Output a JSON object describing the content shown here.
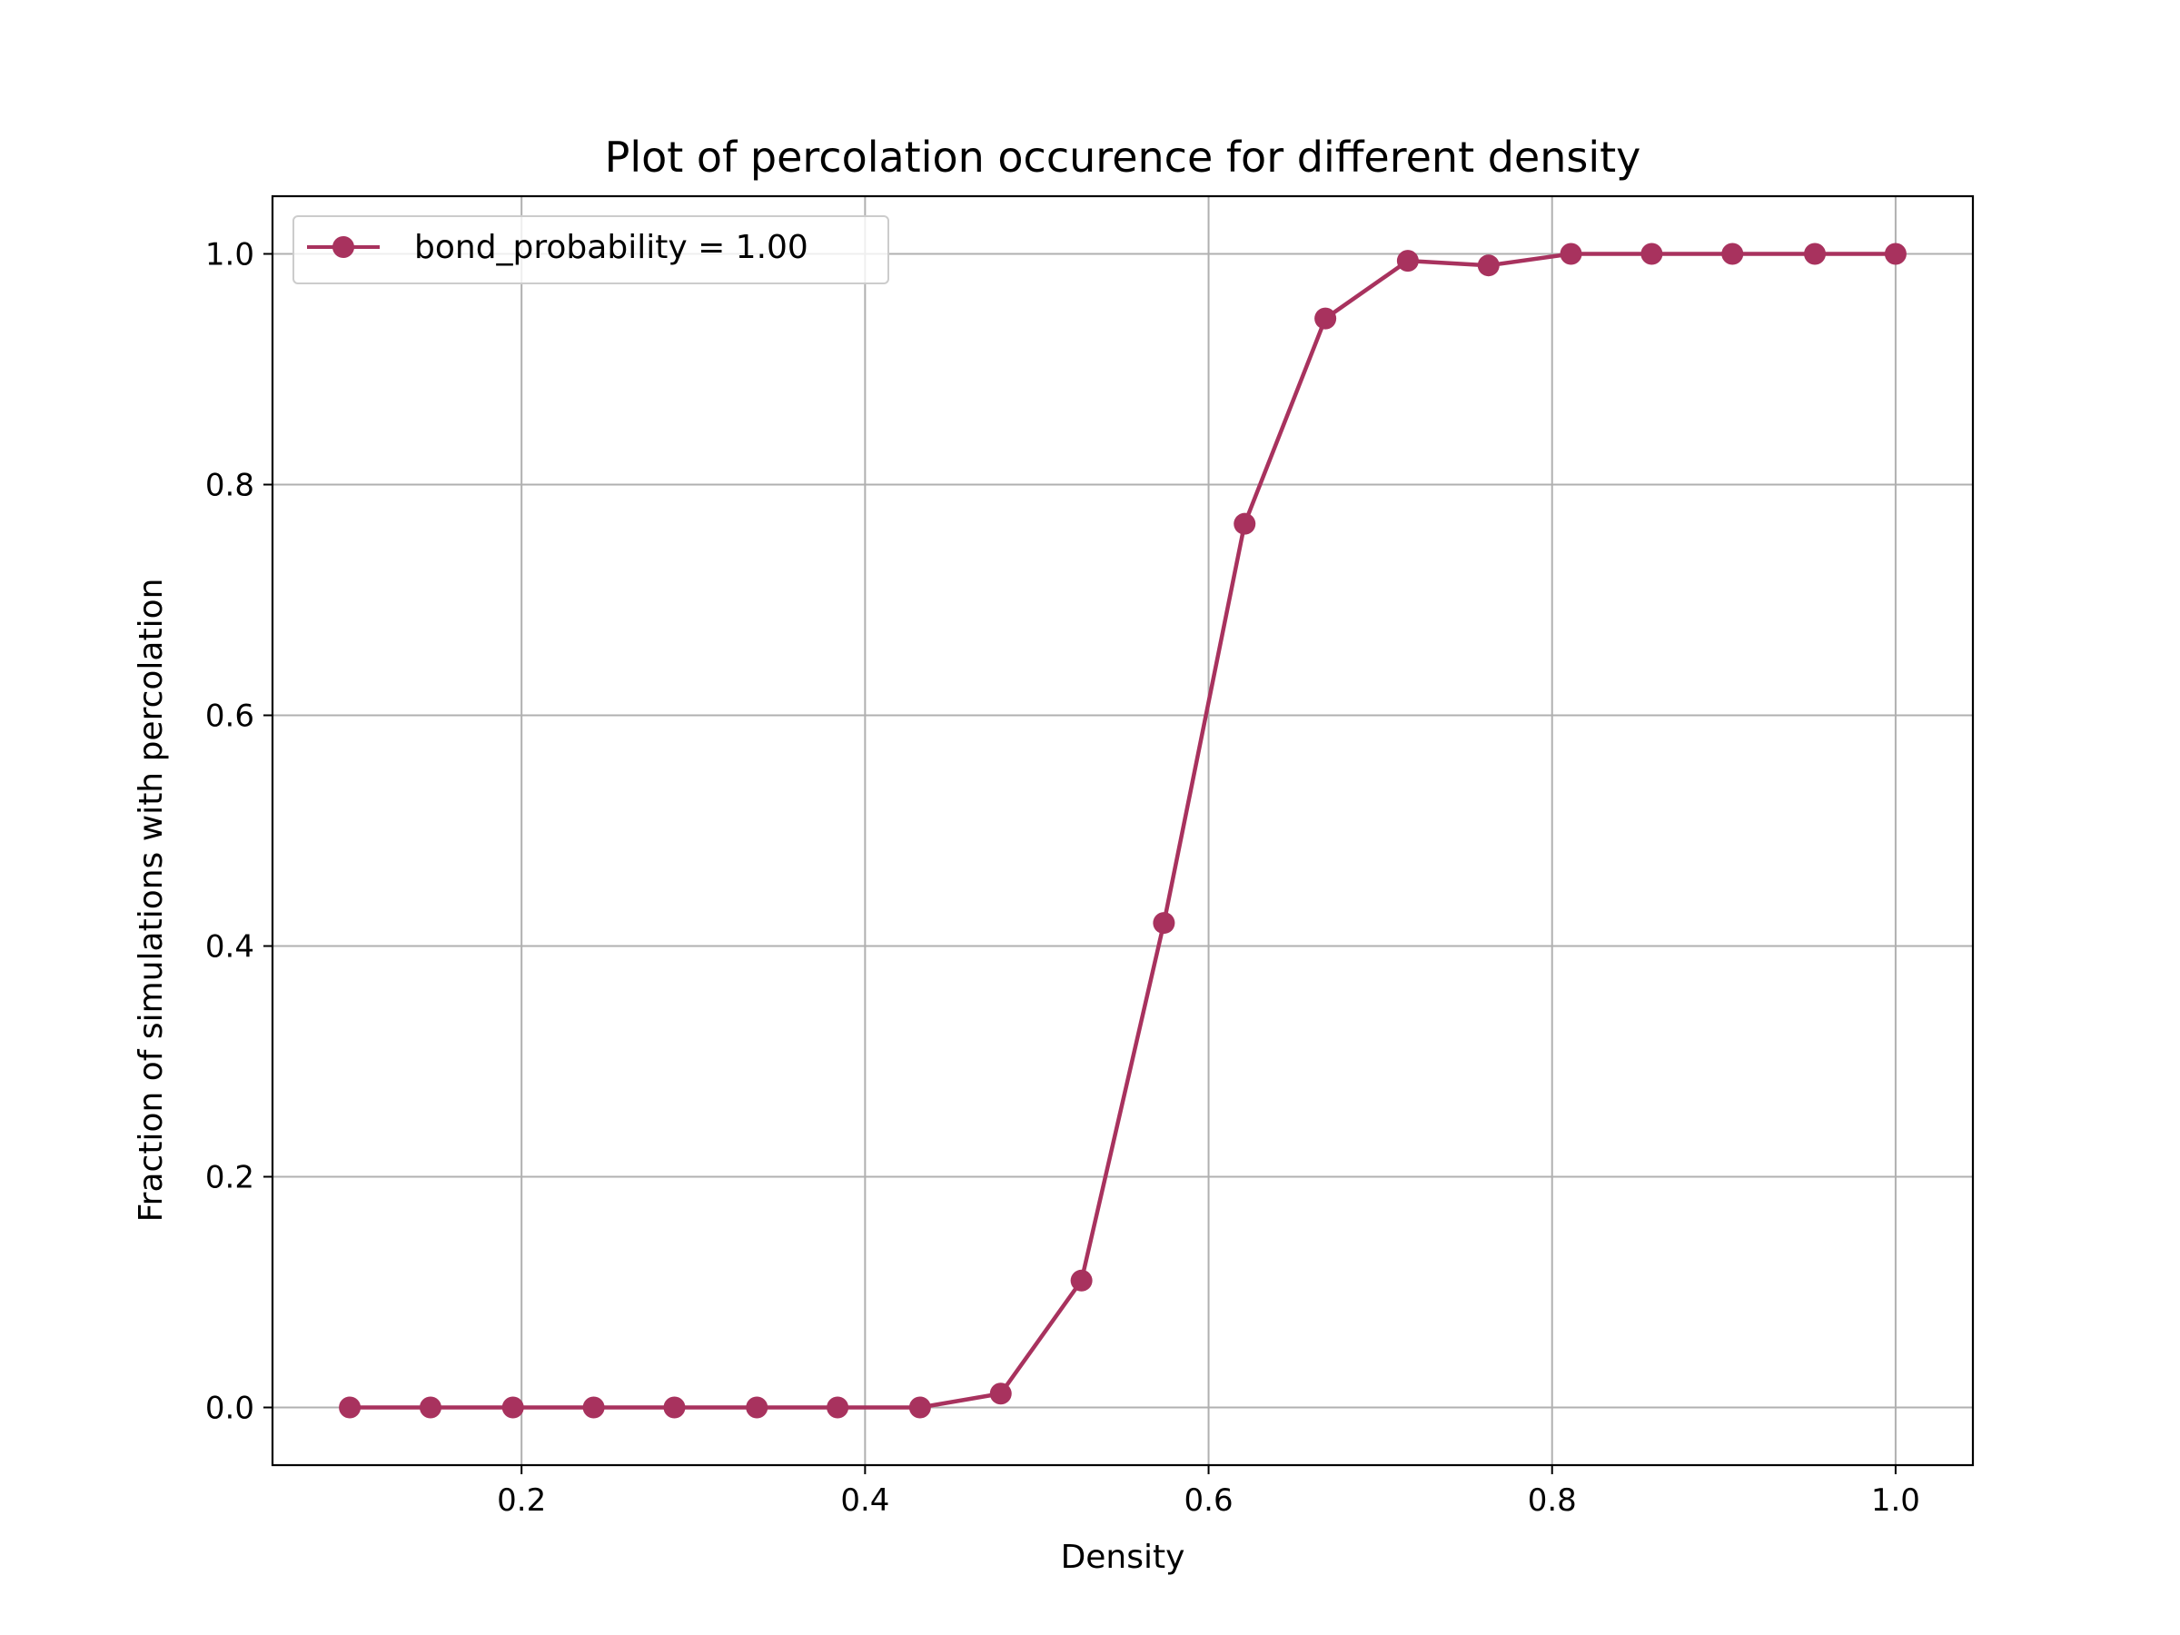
{
  "chart_data": {
    "type": "line",
    "title": "Plot of percolation occurence for different density",
    "xlabel": "Density",
    "ylabel": "Fraction of simulations with percolation",
    "xlim": [
      0.055,
      1.045
    ],
    "ylim": [
      -0.05,
      1.05
    ],
    "xticks": [
      0.2,
      0.4,
      0.6,
      0.8,
      1.0
    ],
    "xtick_labels": [
      "0.2",
      "0.4",
      "0.6",
      "0.8",
      "1.0"
    ],
    "yticks": [
      0.0,
      0.2,
      0.4,
      0.6,
      0.8,
      1.0
    ],
    "ytick_labels": [
      "0.0",
      "0.2",
      "0.4",
      "0.6",
      "0.8",
      "1.0"
    ],
    "grid": true,
    "legend_position": "upper left",
    "series": [
      {
        "name": "bond_probability = 1.00",
        "color": "#a8325e",
        "marker": "circle",
        "x": [
          0.1,
          0.147,
          0.195,
          0.242,
          0.289,
          0.337,
          0.384,
          0.432,
          0.479,
          0.526,
          0.574,
          0.621,
          0.668,
          0.716,
          0.763,
          0.811,
          0.858,
          0.905,
          0.953,
          1.0
        ],
        "y": [
          0.0,
          0.0,
          0.0,
          0.0,
          0.0,
          0.0,
          0.0,
          0.0,
          0.012,
          0.11,
          0.42,
          0.766,
          0.944,
          0.994,
          0.99,
          1.0,
          1.0,
          1.0,
          1.0,
          1.0
        ]
      }
    ]
  }
}
